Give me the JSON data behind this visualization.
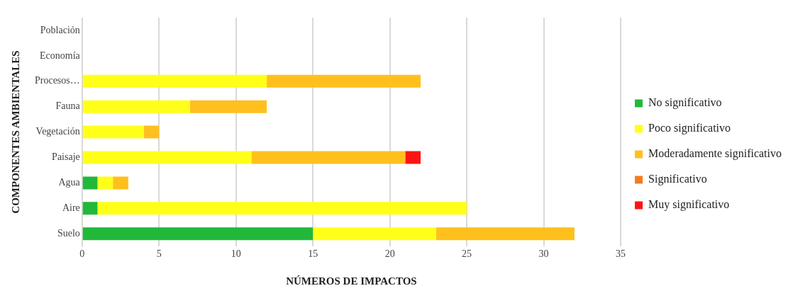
{
  "chart_data": {
    "type": "bar",
    "orientation": "horizontal",
    "stacked": true,
    "xlabel": "NÚMEROS DE IMPACTOS",
    "ylabel": "COMPONENTES AMBIENTALES",
    "categories": [
      "Población",
      "Economía",
      "Procesos…",
      "Fauna",
      "Vegetación",
      "Paisaje",
      "Agua",
      "Aire",
      "Suelo"
    ],
    "series": [
      {
        "name": "No significativo",
        "color": "#22b83a",
        "values": [
          0,
          0,
          0,
          0,
          0,
          0,
          1,
          1,
          15
        ]
      },
      {
        "name": "Poco significativo",
        "color": "#ffff1a",
        "values": [
          0,
          0,
          12,
          7,
          4,
          11,
          1,
          24,
          8
        ]
      },
      {
        "name": "Moderadamente significativo",
        "color": "#ffc01e",
        "values": [
          0,
          0,
          10,
          5,
          1,
          10,
          1,
          0,
          9
        ]
      },
      {
        "name": "Significativo",
        "color": "#f47c20",
        "values": [
          0,
          0,
          0,
          0,
          0,
          0,
          0,
          0,
          0
        ]
      },
      {
        "name": "Muy significativo",
        "color": "#ff1414",
        "values": [
          0,
          0,
          0,
          0,
          0,
          1,
          0,
          0,
          0
        ]
      }
    ],
    "xlim": [
      0,
      35
    ],
    "xticks": [
      0,
      5,
      10,
      15,
      20,
      25,
      30,
      35
    ],
    "grid": "x",
    "legend": "right"
  }
}
